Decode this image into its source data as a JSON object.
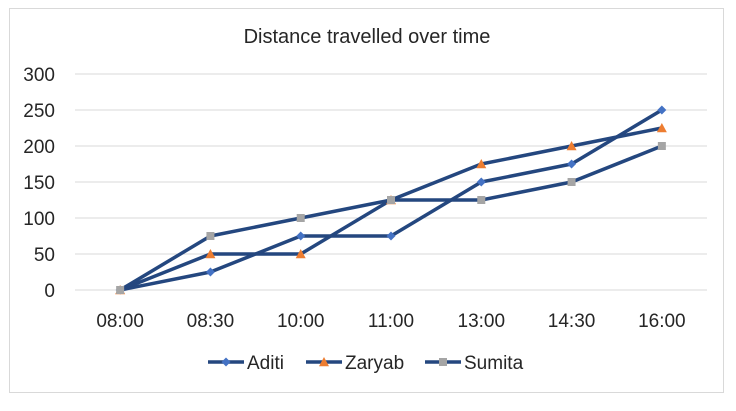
{
  "chart_data": {
    "type": "line",
    "title": "Distance travelled over time",
    "xlabel": "",
    "ylabel": "",
    "categories": [
      "08:00",
      "08:30",
      "10:00",
      "11:00",
      "13:00",
      "14:30",
      "16:00"
    ],
    "ylim": [
      0,
      300
    ],
    "yticks": [
      0,
      50,
      100,
      150,
      200,
      250,
      300
    ],
    "grid": true,
    "legend_position": "bottom",
    "line_color": "#24477f",
    "series": [
      {
        "name": "Aditi",
        "marker": "diamond",
        "marker_color": "#4472c4",
        "values": [
          0,
          25,
          75,
          75,
          150,
          175,
          250
        ]
      },
      {
        "name": "Zaryab",
        "marker": "triangle",
        "marker_color": "#ed7d31",
        "values": [
          0,
          50,
          50,
          125,
          175,
          200,
          225
        ]
      },
      {
        "name": "Sumita",
        "marker": "square",
        "marker_color": "#a5a5a5",
        "values": [
          0,
          75,
          100,
          125,
          125,
          150,
          200
        ]
      }
    ]
  }
}
